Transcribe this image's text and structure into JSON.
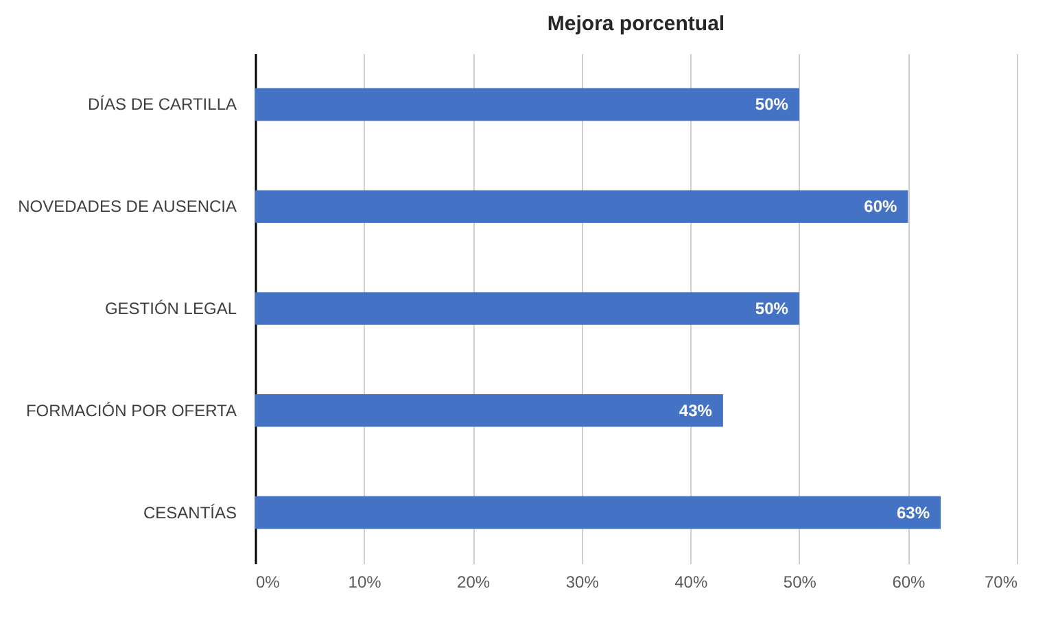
{
  "chart_data": {
    "type": "bar",
    "orientation": "horizontal",
    "title": "Mejora porcentual",
    "categories": [
      "DÍAS DE CARTILLA",
      "NOVEDADES  DE AUSENCIA",
      "GESTIÓN LEGAL",
      "FORMACIÓN POR OFERTA",
      "CESANTÍAS"
    ],
    "values": [
      50,
      60,
      50,
      43,
      63
    ],
    "value_labels": [
      "50%",
      "60%",
      "50%",
      "43%",
      "63%"
    ],
    "color": "#4472c4",
    "xlim": [
      0,
      70
    ],
    "xticks": [
      {
        "value": 0,
        "label": "0%"
      },
      {
        "value": 10,
        "label": "10%"
      },
      {
        "value": 20,
        "label": "20%"
      },
      {
        "value": 30,
        "label": "30%"
      },
      {
        "value": 40,
        "label": "40%"
      },
      {
        "value": 50,
        "label": "50%"
      },
      {
        "value": 60,
        "label": "60%"
      },
      {
        "value": 70,
        "label": "70%"
      }
    ],
    "grid": "x"
  }
}
